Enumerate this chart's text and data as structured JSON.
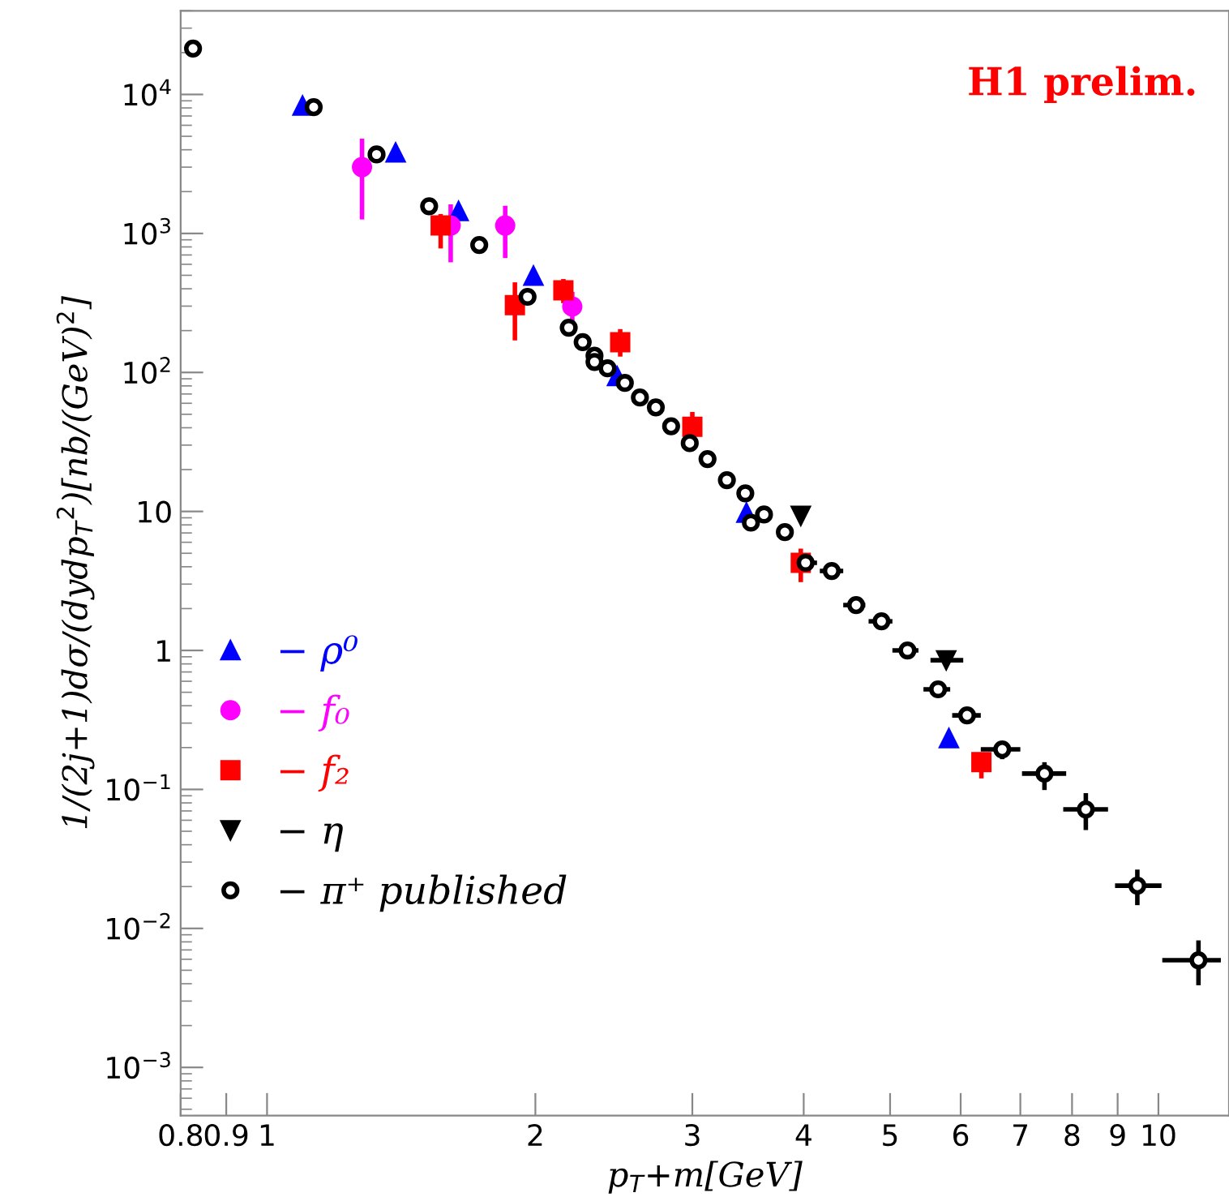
{
  "chart_data": {
    "type": "scatter",
    "xlabel": "p$_{T}$+m[GeV]",
    "ylabel": "1/(2j+1)dσ/(dydp$_{T}$$^{2}$)[nb/(GeV)$^{2}$]",
    "annotations": [
      "H1 prelim."
    ],
    "log": "xy",
    "grid": false,
    "legend": "left",
    "xlim": [
      0.8,
      12
    ],
    "xticks": [
      0.8,
      0.9,
      1,
      2,
      3,
      4,
      5,
      6,
      7,
      8,
      9,
      10
    ],
    "ylim": [
      0.00045,
      40000
    ],
    "yticks": [
      {
        "value": 0.001,
        "label": "10$^{−3}$"
      },
      {
        "value": 0.01,
        "label": "10$^{−2}$"
      },
      {
        "value": 0.1,
        "label": "10$^{−1}$"
      },
      1,
      10,
      {
        "value": 100,
        "label": "10$^{2}$"
      },
      {
        "value": 1000,
        "label": "10$^{3}$"
      },
      {
        "value": 10000,
        "label": "10$^{4}$"
      }
    ],
    "series": [
      {
        "name": "− ρ⁰",
        "color": "#0000ff",
        "marker": "triangle",
        "x": [
          1.096,
          1.394,
          1.64,
          1.99,
          2.47,
          3.45,
          5.82
        ],
        "values": [
          8300,
          3820,
          1450,
          496,
          94,
          9.8,
          0.234
        ]
      },
      {
        "name": "− f₀",
        "color": "#ff00ff",
        "marker": "circle",
        "x": [
          1.278,
          1.607,
          1.85,
          2.2
        ],
        "values": [
          3000,
          1140,
          1140,
          298
        ],
        "errors": [
          [
            1260,
            4800
          ],
          [
            620,
            1620
          ],
          [
            665,
            1580
          ],
          [
            205,
            380
          ]
        ]
      },
      {
        "name": "− f₂",
        "color": "#ff0000",
        "marker": "square",
        "x": [
          1.566,
          1.897,
          2.15,
          2.49,
          3.0,
          3.97,
          6.33
        ],
        "values": [
          1140,
          305,
          390,
          165,
          40.7,
          4.27,
          0.157
        ],
        "errors": [
          [
            780,
            1380
          ],
          [
            170,
            445
          ],
          [
            315,
            470
          ],
          [
            130,
            205
          ],
          [
            36,
            52
          ],
          [
            3.1,
            5.4
          ],
          [
            0.12,
            0.18
          ]
        ]
      },
      {
        "name": "− η",
        "color": "#000000",
        "marker": "triangle-down",
        "x": [
          3.97,
          5.78
        ],
        "values": [
          9.3,
          0.85
        ],
        "xerrors": [
          null,
          [
            5.55,
            6.04
          ]
        ]
      },
      {
        "name": "− π⁺ published",
        "color": "#000000",
        "marker": "circle-open",
        "x": [
          0.826,
          1.128,
          1.327,
          1.52,
          1.73,
          1.96,
          2.18,
          2.26,
          2.33,
          2.33,
          2.41,
          2.52,
          2.62,
          2.73,
          2.84,
          2.98,
          3.12,
          3.28,
          3.44,
          3.49,
          3.61,
          3.81,
          4.02,
          4.3,
          4.58,
          4.89,
          5.23,
          5.66,
          6.1,
          6.68,
          7.45,
          8.29,
          9.47,
          11.09
        ],
        "values": [
          21400,
          8100,
          3700,
          1570,
          826,
          350,
          210,
          165,
          132,
          119,
          107,
          84,
          66,
          56,
          41,
          31,
          23.8,
          16.8,
          13.5,
          8.3,
          9.5,
          7.1,
          4.27,
          3.73,
          2.12,
          1.62,
          1.0,
          0.525,
          0.341,
          0.194,
          0.13,
          0.0718,
          0.0203,
          0.0059
        ],
        "xerrors": [
          null,
          null,
          null,
          null,
          null,
          null,
          null,
          null,
          null,
          null,
          null,
          null,
          null,
          null,
          null,
          null,
          null,
          null,
          null,
          null,
          null,
          null,
          [
            3.94,
            4.14
          ],
          [
            4.17,
            4.43
          ],
          [
            4.43,
            4.69
          ],
          [
            4.73,
            5.03
          ],
          [
            5.03,
            5.38
          ],
          [
            5.45,
            5.84
          ],
          [
            5.87,
            6.32
          ],
          [
            6.32,
            7.0
          ],
          [
            7.03,
            7.88
          ],
          [
            7.82,
            8.78
          ],
          [
            8.94,
            10.08
          ],
          [
            10.1,
            11.75
          ]
        ],
        "errors": [
          null,
          null,
          null,
          null,
          null,
          null,
          null,
          null,
          null,
          null,
          null,
          null,
          null,
          null,
          null,
          null,
          null,
          null,
          null,
          null,
          null,
          null,
          null,
          null,
          null,
          null,
          null,
          null,
          null,
          [
            0.165,
            0.22
          ],
          [
            0.099,
            0.157
          ],
          [
            0.051,
            0.094
          ],
          [
            0.0147,
            0.0265
          ],
          [
            0.0039,
            0.0082
          ]
        ]
      }
    ]
  }
}
